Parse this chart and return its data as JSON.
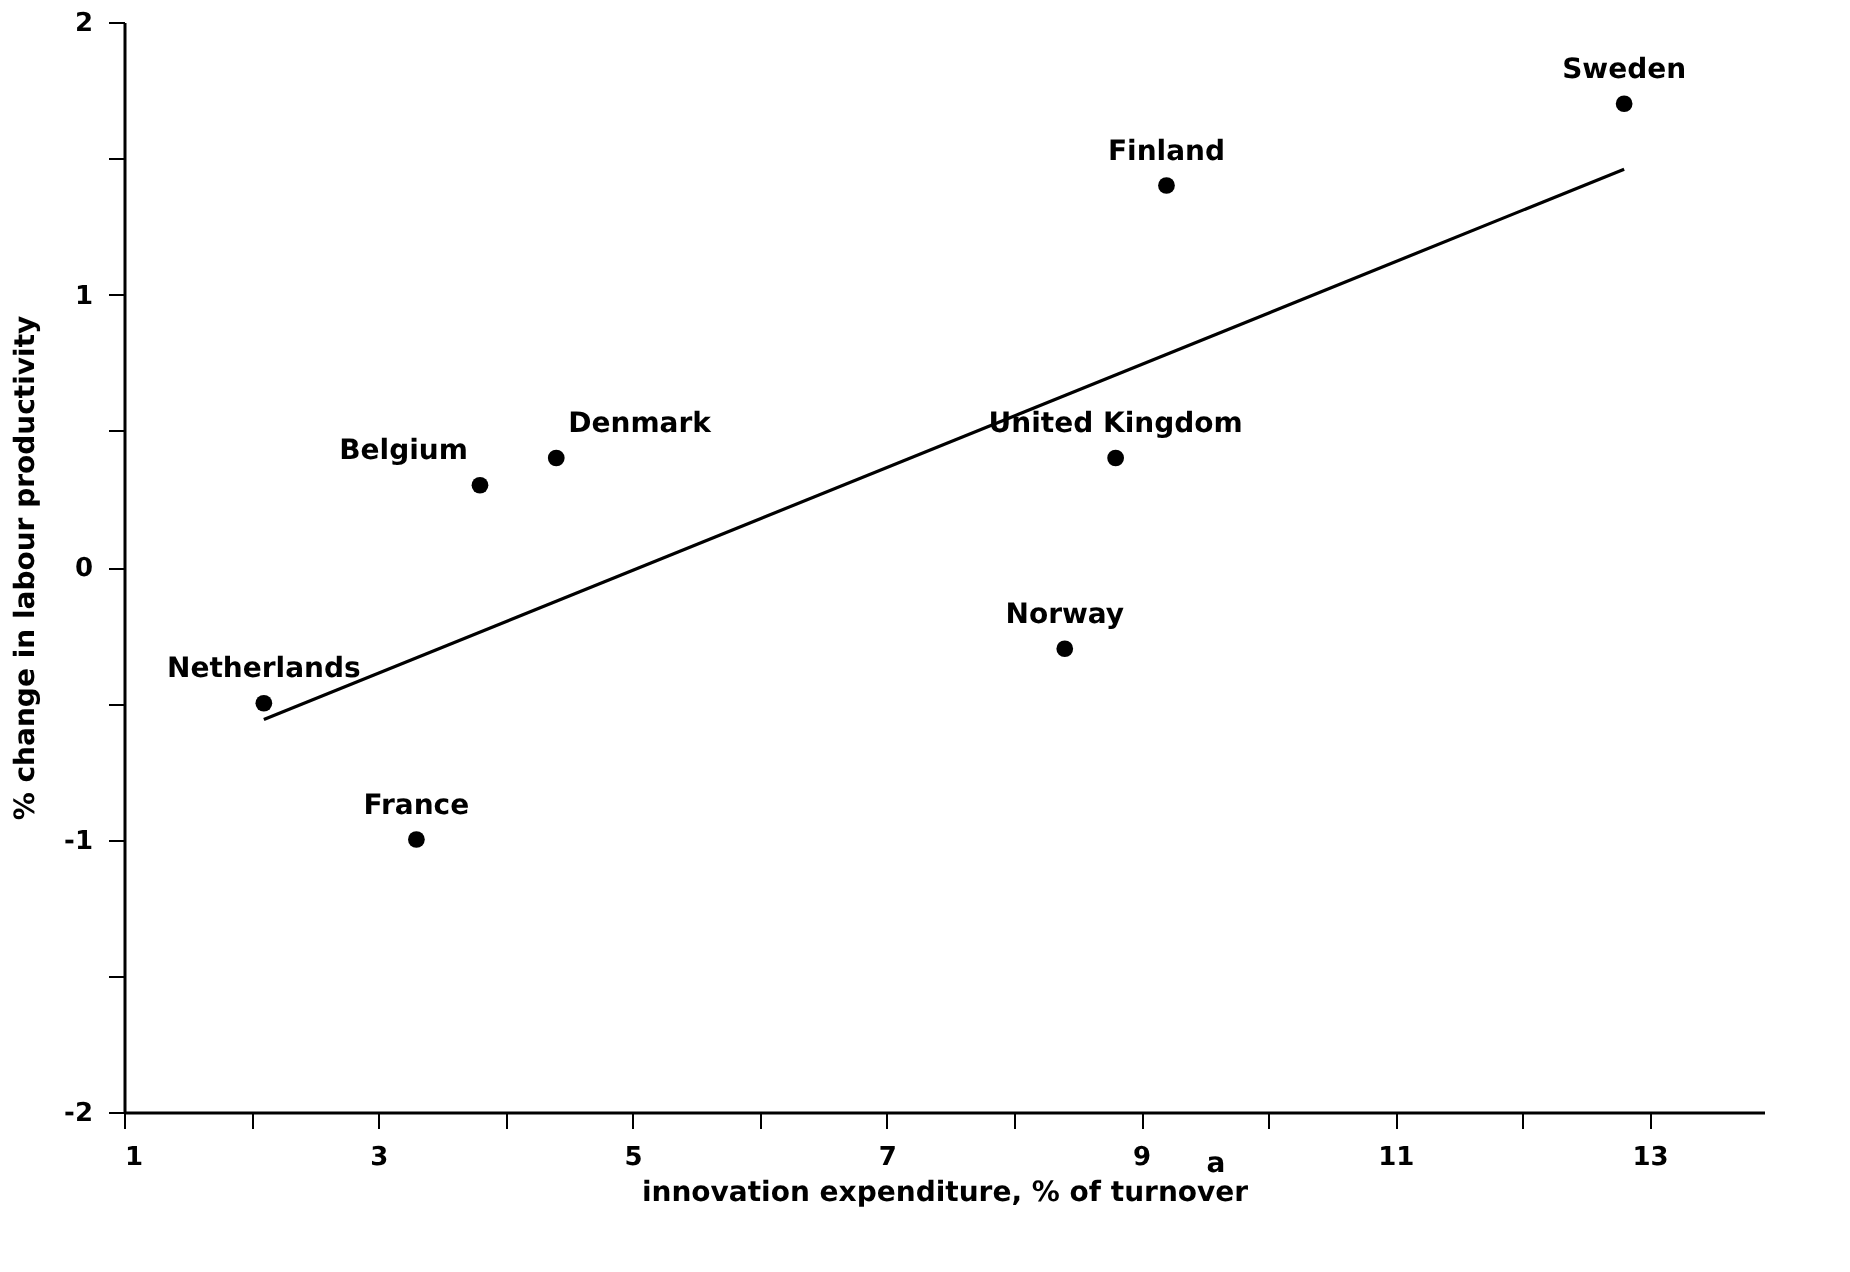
{
  "chart_data": {
    "type": "scatter",
    "xlabel": "innovation expenditure, % of turnover",
    "ylabel": "% change in labour productivity",
    "xlim": [
      1,
      13.9
    ],
    "ylim": [
      -2,
      2
    ],
    "xticks": [
      1,
      {
        "value": 2,
        "label": null
      },
      3,
      {
        "value": 4,
        "label": null
      },
      5,
      {
        "value": 6,
        "label": null
      },
      7,
      {
        "value": 8,
        "label": null
      },
      9,
      {
        "value": 10,
        "label": null
      },
      11,
      {
        "value": 12,
        "label": null
      },
      13
    ],
    "yticks": [
      -2,
      {
        "value": -1.5,
        "label": null
      },
      -1,
      {
        "value": -0.5,
        "label": null
      },
      0,
      {
        "value": 0.5,
        "label": null
      },
      1,
      {
        "value": 1.5,
        "label": null
      },
      2
    ],
    "marker": "circle",
    "series": [
      {
        "color": "#000000",
        "x": [
          12.8,
          9.2,
          8.8,
          8.4,
          4.4,
          3.8,
          2.1,
          3.3
        ],
        "values": [
          1.7,
          1.4,
          0.4,
          -0.3,
          0.4,
          0.3,
          -0.5,
          -1.0
        ]
      },
      {
        "type": "line",
        "color": "#000000",
        "marker": "none",
        "x": [
          2.1,
          12.8
        ],
        "values": [
          -0.56,
          1.46
        ]
      }
    ],
    "annotations": [
      {
        "text": "Sweden",
        "x": 12.8,
        "y": 1.7
      },
      {
        "text": "Finland",
        "x": 9.2,
        "y": 1.4
      },
      {
        "text": "United Kingdom",
        "x": 8.8,
        "y": 0.4
      },
      {
        "text": "Norway",
        "x": 8.4,
        "y": -0.3
      },
      {
        "text": "Denmark",
        "x": 4.4,
        "y": 0.4
      },
      {
        "text": "Belgium",
        "x": 3.8,
        "y": 0.3
      },
      {
        "text": "Netherlands",
        "x": 2.1,
        "y": -0.5
      },
      {
        "text": "France",
        "x": 3.3,
        "y": -1.0
      },
      "a"
    ]
  }
}
